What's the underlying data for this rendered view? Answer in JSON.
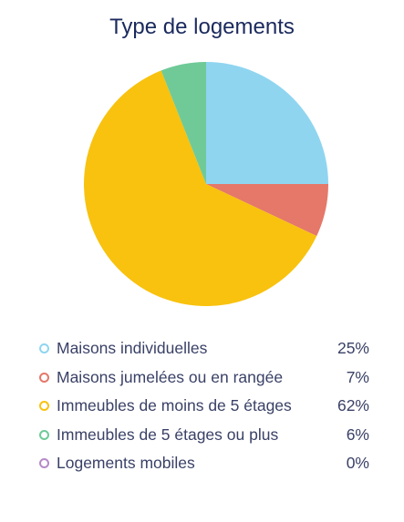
{
  "chart_data": {
    "type": "pie",
    "title": "Type de logements",
    "slices": [
      {
        "label": "Maisons individuelles",
        "value": 25,
        "value_label": "25%",
        "color": "#8fd5f0"
      },
      {
        "label": "Maisons jumelées ou en rangée",
        "value": 7,
        "value_label": "7%",
        "color": "#e57868"
      },
      {
        "label": "Immeubles de moins de 5 étages",
        "value": 62,
        "value_label": "62%",
        "color": "#f8c20e"
      },
      {
        "label": "Immeubles de 5 étages ou plus",
        "value": 6,
        "value_label": "6%",
        "color": "#6fca98"
      },
      {
        "label": "Logements mobiles",
        "value": 0,
        "value_label": "0%",
        "color": "#b58ac8"
      }
    ],
    "legend_position": "bottom"
  }
}
